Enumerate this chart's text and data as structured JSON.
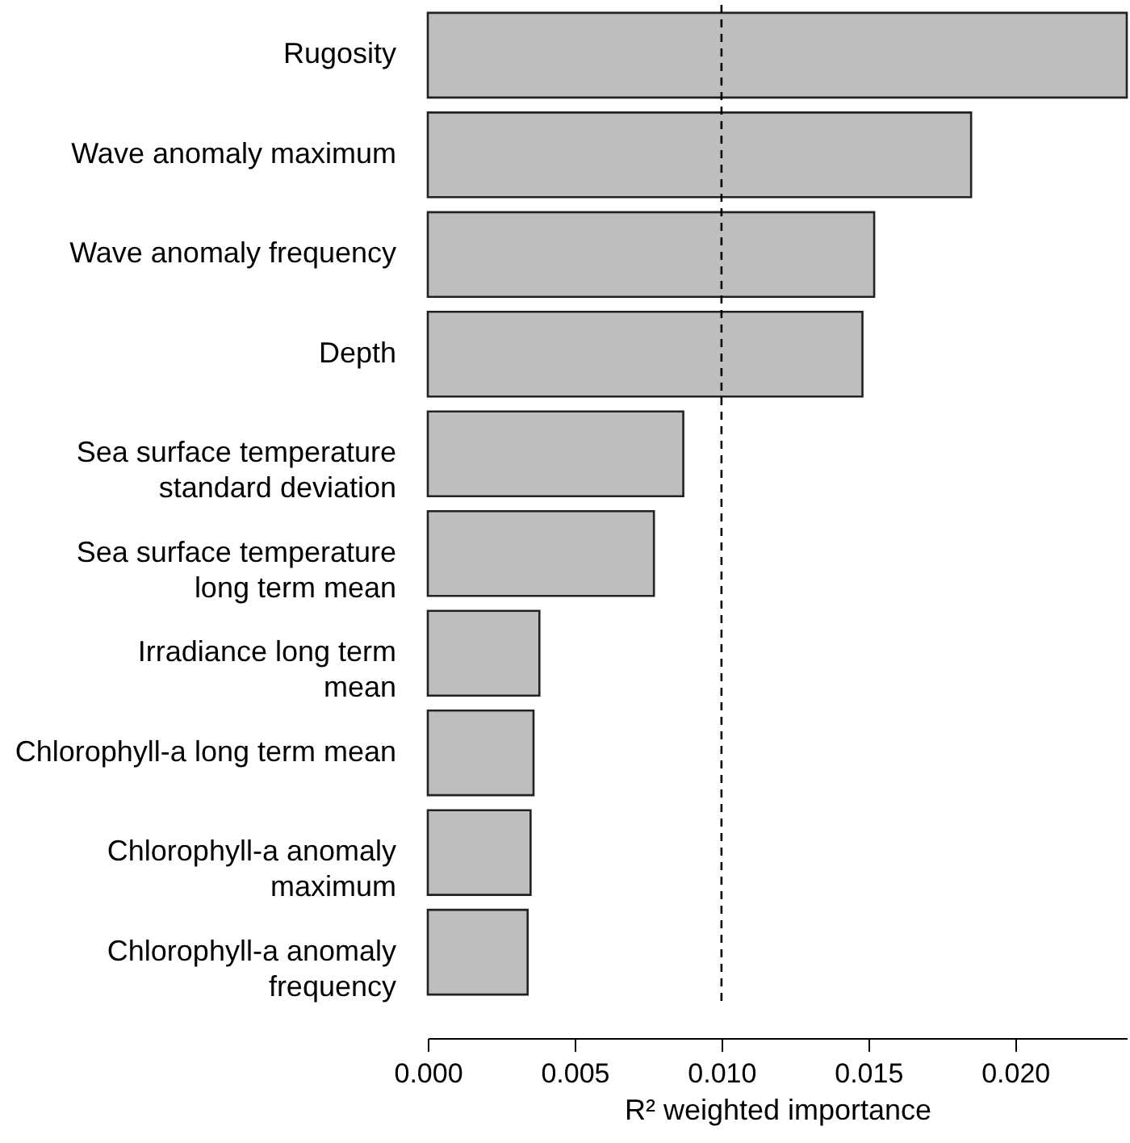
{
  "chart_data": {
    "type": "bar",
    "orientation": "horizontal",
    "categories": [
      "Rugosity",
      "Wave anomaly maximum",
      "Wave anomaly frequency",
      "Depth",
      "Sea surface temperature\nstandard deviation",
      "Sea surface temperature\nlong term mean",
      "Irradiance long term\nmean",
      "Chlorophyll-a long term mean",
      "Chlorophyll-a anomaly\nmaximum",
      "Chlorophyll-a anomaly\nfrequency"
    ],
    "values": [
      0.0238,
      0.0185,
      0.0152,
      0.0148,
      0.0087,
      0.0077,
      0.0038,
      0.0036,
      0.0035,
      0.0034
    ],
    "color": "#bebebe",
    "xlabel": "R² weighted importance",
    "xlim": [
      0,
      0.0238
    ],
    "xticks": [
      {
        "value": 0,
        "label": "0.000"
      },
      {
        "value": 0.005,
        "label": "0.005"
      },
      {
        "value": 0.01,
        "label": "0.010"
      },
      {
        "value": 0.015,
        "label": "0.015"
      },
      {
        "value": 0.02,
        "label": "0.020"
      }
    ],
    "ref_lines": [
      {
        "axis": "x",
        "value": 0.01,
        "line_style": "dashed"
      }
    ],
    "grid": false
  }
}
